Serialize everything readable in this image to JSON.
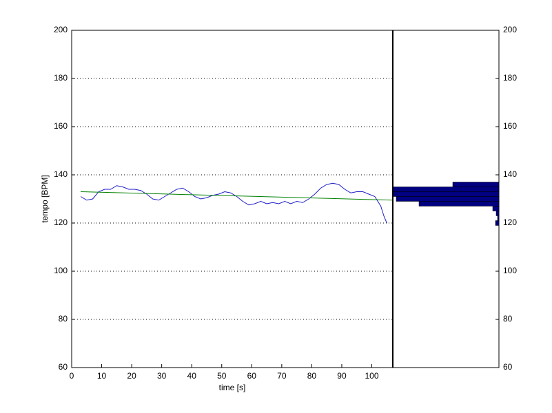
{
  "chart_data": [
    {
      "type": "line",
      "xlabel": "time [s]",
      "ylabel": "tempo [BPM]",
      "xlim": [
        0,
        107
      ],
      "ylim": [
        60,
        200
      ],
      "xticks": [
        0,
        10,
        20,
        30,
        40,
        50,
        60,
        70,
        80,
        90,
        100
      ],
      "yticks": [
        60,
        80,
        100,
        120,
        140,
        160,
        180,
        200
      ],
      "grid": true,
      "series": [
        {
          "color": "#1c1cc8",
          "x": [
            3,
            5,
            7,
            9,
            11,
            13,
            15,
            17,
            19,
            21,
            23,
            25,
            27,
            29,
            31,
            33,
            35,
            37,
            39,
            41,
            43,
            45,
            47,
            49,
            51,
            53,
            55,
            57,
            59,
            61,
            63,
            65,
            67,
            69,
            71,
            73,
            75,
            77,
            79,
            81,
            83,
            85,
            87,
            89,
            91,
            93,
            95,
            97,
            99,
            101,
            103,
            104,
            105
          ],
          "values": [
            131,
            129.5,
            130,
            133,
            134,
            134,
            135.5,
            135,
            134,
            134,
            133.5,
            132,
            130,
            129.5,
            131,
            132.5,
            134,
            134.5,
            133,
            131,
            130,
            130.5,
            131.5,
            132,
            133,
            132.5,
            131,
            129,
            127.5,
            128,
            129,
            128,
            128.5,
            128,
            129,
            128,
            129,
            128.5,
            130,
            132,
            134.5,
            136,
            136.5,
            136,
            134,
            132.5,
            133,
            133,
            132,
            131,
            127,
            123,
            120
          ]
        },
        {
          "color": "#008000",
          "x": [
            3,
            107
          ],
          "values": [
            133,
            129.5
          ]
        }
      ]
    },
    {
      "type": "histogram",
      "orientation": "horizontal",
      "color": "#000080",
      "bins": [
        119,
        121,
        123,
        125,
        127,
        129,
        131,
        133,
        135,
        137
      ],
      "counts": [
        5,
        2,
        4,
        9,
        116,
        149,
        154,
        154,
        67
      ],
      "xlim": [
        0,
        154
      ],
      "ylim": [
        60,
        200
      ],
      "yticks": [
        60,
        80,
        100,
        120,
        140,
        160,
        180,
        200
      ]
    }
  ]
}
